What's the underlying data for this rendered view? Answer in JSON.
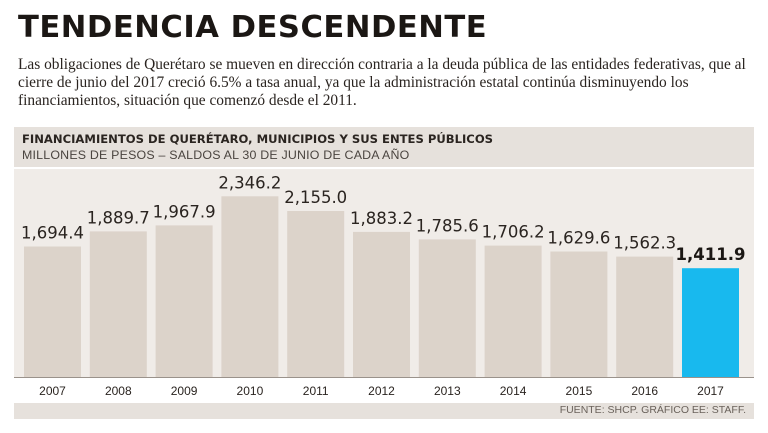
{
  "headline": "TENDENCIA DESCENDENTE",
  "intro": "Las obligaciones de Querétaro se mueven en dirección contraria a la deuda pública de las entidades federativas, que al cierre de junio del 2017 creció 6.5% a tasa anual, ya que la administración estatal continúa disminuyendo los financiamientos, situación que comenzó desde el 2011.",
  "source": "FUENTE: SHCP. GRÁFICO EE: STAFF.",
  "colors": {
    "bar": "#dcd3ca",
    "highlight_bar": "#18b9ee",
    "header_bg": "#e6e1dc",
    "plot_bg": "#f0ece8"
  },
  "chart_data": {
    "type": "bar",
    "title": "FINANCIAMIENTOS DE QUERÉTARO, MUNICIPIOS Y SUS ENTES PÚBLICOS",
    "subtitle": "MILLONES DE PESOS – SALDOS AL 30 DE JUNIO DE CADA AÑO",
    "xlabel": "",
    "ylabel": "",
    "ylim": [
      0,
      2700
    ],
    "categories": [
      "2007",
      "2008",
      "2009",
      "2010",
      "2011",
      "2012",
      "2013",
      "2014",
      "2015",
      "2016",
      "2017"
    ],
    "values": [
      1694.4,
      1889.7,
      1967.9,
      2346.2,
      2155.0,
      1883.2,
      1785.6,
      1706.2,
      1629.6,
      1562.3,
      1411.9
    ],
    "labels": [
      "1,694.4",
      "1,889.7",
      "1,967.9",
      "2,346.2",
      "2,155.0",
      "1,883.2",
      "1,785.6",
      "1,706.2",
      "1,629.6",
      "1,562.3",
      "1,411.9"
    ],
    "highlight": "2017",
    "grid": false,
    "legend": "none"
  }
}
